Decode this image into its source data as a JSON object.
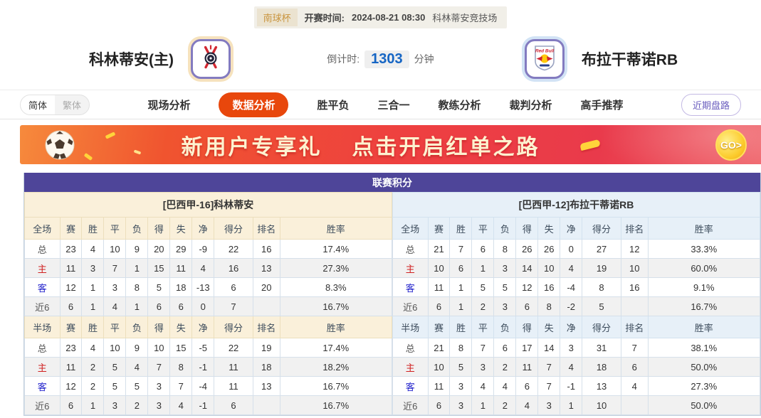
{
  "top_bar": {
    "league_badge": "南球杯",
    "kickoff_label": "开赛时间:",
    "kickoff_time": "2024-08-21 08:30",
    "venue": "科林蒂安竞技场"
  },
  "header": {
    "home_team": {
      "name": "科林蒂安(主)",
      "logo": "corinthians-crest"
    },
    "away_team": {
      "name": "布拉干蒂诺RB",
      "logo": "red-bull-bragantino-crest"
    },
    "countdown": {
      "label": "倒计时:",
      "value": "1303",
      "unit": "分钟"
    }
  },
  "nav": {
    "language_toggle": {
      "simplified": "简体",
      "traditional": "繁体",
      "selected": "简体"
    },
    "tabs": [
      {
        "label": "现场分析",
        "active": false
      },
      {
        "label": "数据分析",
        "active": true
      },
      {
        "label": "胜平负",
        "active": false
      },
      {
        "label": "三合一",
        "active": false
      },
      {
        "label": "教练分析",
        "active": false
      },
      {
        "label": "裁判分析",
        "active": false
      },
      {
        "label": "高手推荐",
        "active": false
      }
    ],
    "recent_trends_button": "近期盘路"
  },
  "banner": {
    "headline_left": "新用户专享礼",
    "headline_right": "点击开启红单之路",
    "go_button": "GO>"
  },
  "league_table": {
    "caption": "联赛积分",
    "full_time_columns": [
      "全场",
      "赛",
      "胜",
      "平",
      "负",
      "得",
      "失",
      "净",
      "得分",
      "排名",
      "胜率"
    ],
    "half_time_columns": [
      "半场",
      "赛",
      "胜",
      "平",
      "负",
      "得",
      "失",
      "净",
      "得分",
      "排名",
      "胜率"
    ],
    "col_widths": [
      "9.6%",
      "6%",
      "6%",
      "6%",
      "6%",
      "6%",
      "6%",
      "6%",
      "10.6%",
      "7.3%",
      ""
    ],
    "home": {
      "title": "[巴西甲-16]科林蒂安",
      "full_time_rows": [
        {
          "label": "总",
          "values": [
            "23",
            "4",
            "10",
            "9",
            "20",
            "29",
            "-9",
            "22",
            "16",
            "17.4%"
          ]
        },
        {
          "label": "主",
          "values": [
            "11",
            "3",
            "7",
            "1",
            "15",
            "11",
            "4",
            "16",
            "13",
            "27.3%"
          ]
        },
        {
          "label": "客",
          "values": [
            "12",
            "1",
            "3",
            "8",
            "5",
            "18",
            "-13",
            "6",
            "20",
            "8.3%"
          ]
        },
        {
          "label": "近6",
          "values": [
            "6",
            "1",
            "4",
            "1",
            "6",
            "6",
            "0",
            "7",
            "",
            "16.7%"
          ]
        }
      ],
      "half_time_rows": [
        {
          "label": "总",
          "values": [
            "23",
            "4",
            "10",
            "9",
            "10",
            "15",
            "-5",
            "22",
            "19",
            "17.4%"
          ]
        },
        {
          "label": "主",
          "values": [
            "11",
            "2",
            "5",
            "4",
            "7",
            "8",
            "-1",
            "11",
            "18",
            "18.2%"
          ]
        },
        {
          "label": "客",
          "values": [
            "12",
            "2",
            "5",
            "5",
            "3",
            "7",
            "-4",
            "11",
            "13",
            "16.7%"
          ]
        },
        {
          "label": "近6",
          "values": [
            "6",
            "1",
            "3",
            "2",
            "3",
            "4",
            "-1",
            "6",
            "",
            "16.7%"
          ]
        }
      ]
    },
    "away": {
      "title": "[巴西甲-12]布拉干蒂诺RB",
      "full_time_rows": [
        {
          "label": "总",
          "values": [
            "21",
            "7",
            "6",
            "8",
            "26",
            "26",
            "0",
            "27",
            "12",
            "33.3%"
          ]
        },
        {
          "label": "主",
          "values": [
            "10",
            "6",
            "1",
            "3",
            "14",
            "10",
            "4",
            "19",
            "10",
            "60.0%"
          ]
        },
        {
          "label": "客",
          "values": [
            "11",
            "1",
            "5",
            "5",
            "12",
            "16",
            "-4",
            "8",
            "16",
            "9.1%"
          ]
        },
        {
          "label": "近6",
          "values": [
            "6",
            "1",
            "2",
            "3",
            "6",
            "8",
            "-2",
            "5",
            "",
            "16.7%"
          ]
        }
      ],
      "half_time_rows": [
        {
          "label": "总",
          "values": [
            "21",
            "8",
            "7",
            "6",
            "17",
            "14",
            "3",
            "31",
            "7",
            "38.1%"
          ]
        },
        {
          "label": "主",
          "values": [
            "10",
            "5",
            "3",
            "2",
            "11",
            "7",
            "4",
            "18",
            "6",
            "50.0%"
          ]
        },
        {
          "label": "客",
          "values": [
            "11",
            "3",
            "4",
            "4",
            "6",
            "7",
            "-1",
            "13",
            "4",
            "27.3%"
          ]
        },
        {
          "label": "近6",
          "values": [
            "6",
            "3",
            "1",
            "2",
            "4",
            "3",
            "1",
            "10",
            "",
            "50.0%"
          ]
        }
      ]
    }
  },
  "colors": {
    "table_caption_bg": "#4e4599",
    "active_tab_bg": "#e8470c",
    "home_theme_bg": "#faf0da",
    "away_theme_bg": "#e7f0f8",
    "home_row_label": "#d02020",
    "away_row_label": "#2424cc",
    "countdown_value": "#1565c4",
    "banner_text": "#fdf2d0",
    "league_badge_text": "#c9953f"
  }
}
